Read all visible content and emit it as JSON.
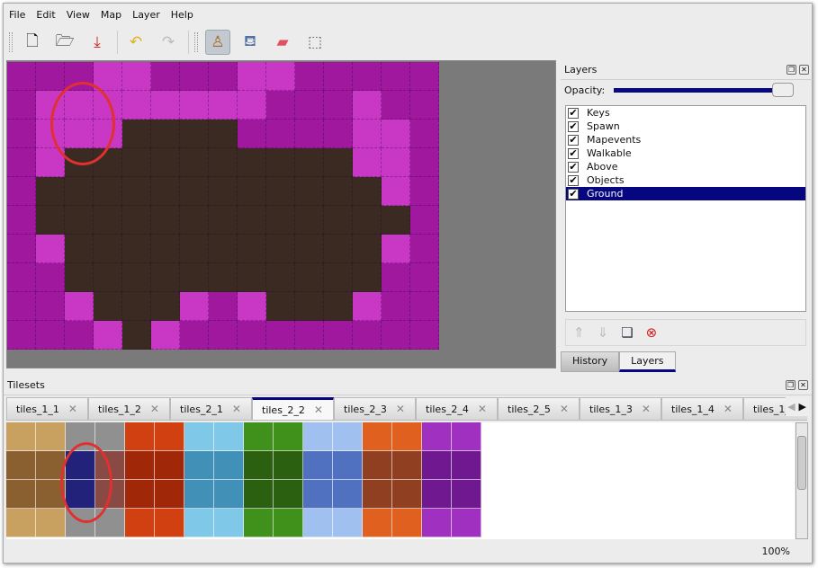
{
  "menu": [
    "File",
    "Edit",
    "View",
    "Map",
    "Layer",
    "Help"
  ],
  "toolbar": [
    {
      "icon": "new-document-icon",
      "glyph": "🗋"
    },
    {
      "icon": "open-folder-icon",
      "glyph": "🗁"
    },
    {
      "icon": "save-icon",
      "glyph": "⤓"
    },
    {
      "icon": "undo-icon",
      "glyph": "↶"
    },
    {
      "icon": "redo-icon",
      "glyph": "↷"
    },
    {
      "icon": "stamp-brush-icon",
      "glyph": "♙"
    },
    {
      "icon": "bucket-fill-icon",
      "glyph": "⛾"
    },
    {
      "icon": "eraser-icon",
      "glyph": "▰"
    },
    {
      "icon": "rect-select-icon",
      "glyph": "⬚"
    }
  ],
  "map": {
    "rows": [
      "MMMLLMMMLLMMMMM",
      "MLLLLLLLLMMMLMM",
      "MLLLBBBBMMMMLLM",
      "MLBBBBBBBBBBLLM",
      "MBBBBBBBBBBBBLM",
      "MBBBBBBBBBBBBBM",
      "MLBBBBBBBBBBBLM",
      "MMBBBBBBBBBBBMM",
      "MMLBBBLMLBBBLMM",
      "MMMLBLMMMMMMMMM"
    ],
    "colors": {
      "M": "#a0189e",
      "L": "#c838c4",
      "B": "#3a2a22"
    }
  },
  "layers": {
    "title": "Layers",
    "opacity_label": "Opacity:",
    "opacity": 1.0,
    "items": [
      {
        "label": "Keys",
        "checked": true
      },
      {
        "label": "Spawn",
        "checked": true
      },
      {
        "label": "Mapevents",
        "checked": true
      },
      {
        "label": "Walkable",
        "checked": true
      },
      {
        "label": "Above",
        "checked": true
      },
      {
        "label": "Objects",
        "checked": true
      },
      {
        "label": "Ground",
        "checked": true,
        "selected": true
      }
    ],
    "bottom_tabs": [
      "History",
      "Layers"
    ],
    "active_tab": "Layers"
  },
  "tilesets": {
    "title": "Tilesets",
    "tabs": [
      "tiles_1_1",
      "tiles_1_2",
      "tiles_2_1",
      "tiles_2_2",
      "tiles_2_3",
      "tiles_2_4",
      "tiles_2_5",
      "tiles_1_3",
      "tiles_1_4",
      "tiles_1_"
    ],
    "active": "tiles_2_2",
    "groups": [
      [
        "#c8a060",
        "#8a6030"
      ],
      [
        "#909090",
        "#606060"
      ],
      [
        "#d04010",
        "#a02808"
      ],
      [
        "#80c8e8",
        "#4090b8"
      ],
      [
        "#40901c",
        "#2a6010"
      ],
      [
        "#a0c0f0",
        "#5070c0"
      ],
      [
        "#e06020",
        "#904020"
      ],
      [
        "#a030c0",
        "#701890"
      ]
    ]
  },
  "status": {
    "zoom": "100%"
  }
}
